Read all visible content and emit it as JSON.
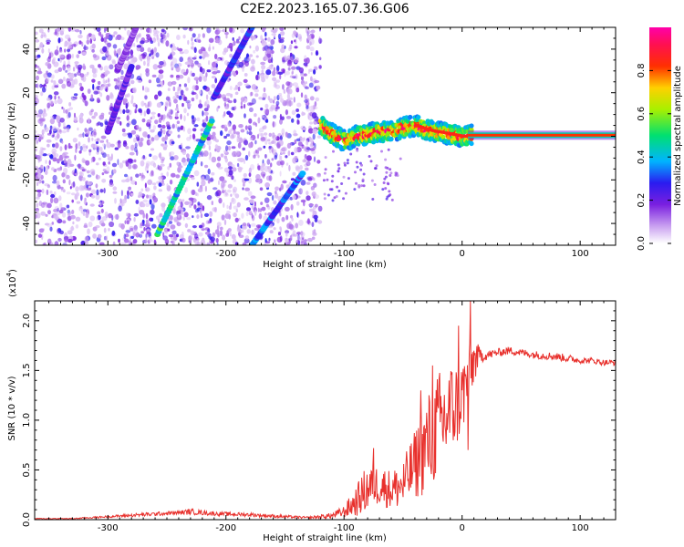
{
  "figure": {
    "title": "C2E2.2023.165.07.36.G06"
  },
  "chart_data": [
    {
      "type": "heatmap",
      "xlabel": "Height of straight line (km)",
      "ylabel": "Frequency (Hz)",
      "xlim": [
        -362,
        130
      ],
      "ylim": [
        -50,
        50
      ],
      "xticks": [
        -300,
        -200,
        -100,
        0,
        100
      ],
      "yticks": [
        -40,
        -20,
        0,
        20,
        40
      ],
      "xtick_labels": [
        "-300",
        "-200",
        "-100",
        "0",
        "100"
      ],
      "ytick_labels": [
        "-40",
        "-20",
        "0",
        "20",
        "40"
      ],
      "colorbar": {
        "label": "Normalized spectral amplitude",
        "range": [
          0,
          1
        ],
        "ticks": [
          0.0,
          0.2,
          0.4,
          0.6,
          0.8
        ],
        "tick_labels": [
          "0.0",
          "0.2",
          "0.4",
          "0.6",
          "0.8"
        ]
      },
      "features": {
        "noise_region_x": [
          -362,
          -120
        ],
        "streaks": [
          {
            "x": [
              -258,
              -212
            ],
            "y": [
              -45,
              7
            ],
            "amp": 0.45
          },
          {
            "x": [
              -178,
              -135
            ],
            "y": [
              -50,
              -17
            ],
            "amp": 0.3
          },
          {
            "x": [
              -210,
              -178
            ],
            "y": [
              18,
              50
            ],
            "amp": 0.25
          },
          {
            "x": [
              -300,
              -280
            ],
            "y": [
              2,
              32
            ],
            "amp": 0.2
          },
          {
            "x": [
              -292,
              -276
            ],
            "y": [
              30,
              50
            ],
            "amp": 0.15
          }
        ],
        "main_signal": [
          [
            -120,
            5
          ],
          [
            -110,
            1
          ],
          [
            -100,
            -2
          ],
          [
            -90,
            0
          ],
          [
            -80,
            1
          ],
          [
            -70,
            2
          ],
          [
            -60,
            2
          ],
          [
            -50,
            4
          ],
          [
            -40,
            5
          ],
          [
            -30,
            3
          ],
          [
            -20,
            2
          ],
          [
            -10,
            1
          ],
          [
            0,
            0
          ],
          [
            10,
            0.5
          ],
          [
            50,
            0.5
          ],
          [
            100,
            0.5
          ],
          [
            130,
            0.5
          ]
        ]
      }
    },
    {
      "type": "line",
      "xlabel": "Height of straight line (km)",
      "ylabel": "SNR (10 * v/v)",
      "y_multiplier": "(x10",
      "y_exponent": "4",
      "y_multiplier_close": ")",
      "xlim": [
        -362,
        130
      ],
      "ylim": [
        0,
        2.2
      ],
      "xticks": [
        -300,
        -200,
        -100,
        0,
        100
      ],
      "yticks": [
        0.0,
        0.5,
        1.0,
        1.5,
        2.0
      ],
      "xtick_labels": [
        "-300",
        "-200",
        "-100",
        "0",
        "100"
      ],
      "ytick_labels": [
        "0.0",
        "0.5",
        "1.0",
        "1.5",
        "2.0"
      ],
      "color": "#e8302c",
      "series": [
        {
          "x": [
            -362,
            -330,
            -300,
            -270,
            -240,
            -230,
            -210,
            -180,
            -150,
            -130,
            -110,
            -100,
            -90,
            -80,
            -70,
            -60,
            -50,
            -40,
            -30,
            -20,
            -15,
            -10,
            -5,
            0,
            5,
            10,
            15,
            20,
            30,
            40,
            50,
            60,
            70,
            80,
            90,
            100,
            110,
            120,
            130
          ],
          "y": [
            0.01,
            0.01,
            0.03,
            0.05,
            0.07,
            0.08,
            0.06,
            0.05,
            0.03,
            0.02,
            0.04,
            0.08,
            0.18,
            0.32,
            0.35,
            0.3,
            0.35,
            0.55,
            0.75,
            0.95,
            1.0,
            1.1,
            1.15,
            1.25,
            1.4,
            1.6,
            1.65,
            1.65,
            1.68,
            1.7,
            1.68,
            1.66,
            1.65,
            1.64,
            1.62,
            1.6,
            1.6,
            1.58,
            1.58
          ],
          "jitter": [
            0.005,
            0.005,
            0.01,
            0.02,
            0.02,
            0.03,
            0.02,
            0.02,
            0.015,
            0.01,
            0.03,
            0.06,
            0.15,
            0.25,
            0.2,
            0.2,
            0.25,
            0.35,
            0.5,
            0.55,
            0.55,
            0.5,
            0.45,
            0.4,
            0.35,
            0.25,
            0.08,
            0.05,
            0.04,
            0.04,
            0.04,
            0.04,
            0.04,
            0.04,
            0.04,
            0.03,
            0.03,
            0.03,
            0.03
          ],
          "spikes": [
            [
              7,
              2.2
            ],
            [
              -3,
              1.95
            ],
            [
              -25,
              1.55
            ],
            [
              -35,
              1.3
            ],
            [
              -75,
              0.72
            ],
            [
              5,
              0.7
            ]
          ]
        }
      ]
    }
  ]
}
